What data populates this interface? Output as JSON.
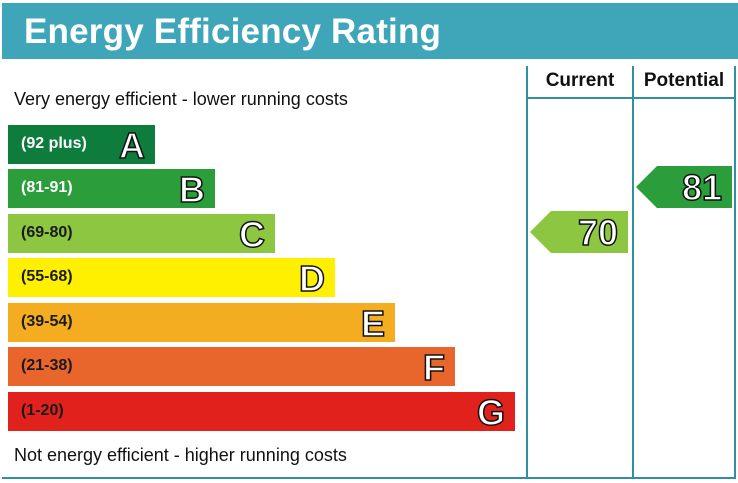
{
  "title": "Energy Efficiency Rating",
  "columns": {
    "current": "Current",
    "potential": "Potential"
  },
  "top_note": "Very energy efficient - lower running costs",
  "bottom_note": "Not energy efficient - higher running costs",
  "chart_data": {
    "type": "bar",
    "title": "Energy Efficiency Rating",
    "bands": [
      {
        "letter": "A",
        "range": "(92 plus)",
        "min": 92,
        "max": 100,
        "color": "#0e7c3d",
        "text_color": "#ffffff"
      },
      {
        "letter": "B",
        "range": "(81-91)",
        "min": 81,
        "max": 91,
        "color": "#2b9d3a",
        "text_color": "#ffffff"
      },
      {
        "letter": "C",
        "range": "(69-80)",
        "min": 69,
        "max": 80,
        "color": "#8dc640",
        "text_color": "#1a1a1a"
      },
      {
        "letter": "D",
        "range": "(55-68)",
        "min": 55,
        "max": 68,
        "color": "#fff000",
        "text_color": "#1a1a1a"
      },
      {
        "letter": "E",
        "range": "(39-54)",
        "min": 39,
        "max": 54,
        "color": "#f4ac20",
        "text_color": "#1a1a1a"
      },
      {
        "letter": "F",
        "range": "(21-38)",
        "min": 21,
        "max": 38,
        "color": "#e8652b",
        "text_color": "#1a1a1a"
      },
      {
        "letter": "G",
        "range": "(1-20)",
        "min": 1,
        "max": 20,
        "color": "#e1221c",
        "text_color": "#1a1a1a"
      }
    ],
    "current": {
      "value": 70,
      "band": "C",
      "color": "#8dc640"
    },
    "potential": {
      "value": 81,
      "band": "B",
      "color": "#2b9d3a"
    }
  }
}
